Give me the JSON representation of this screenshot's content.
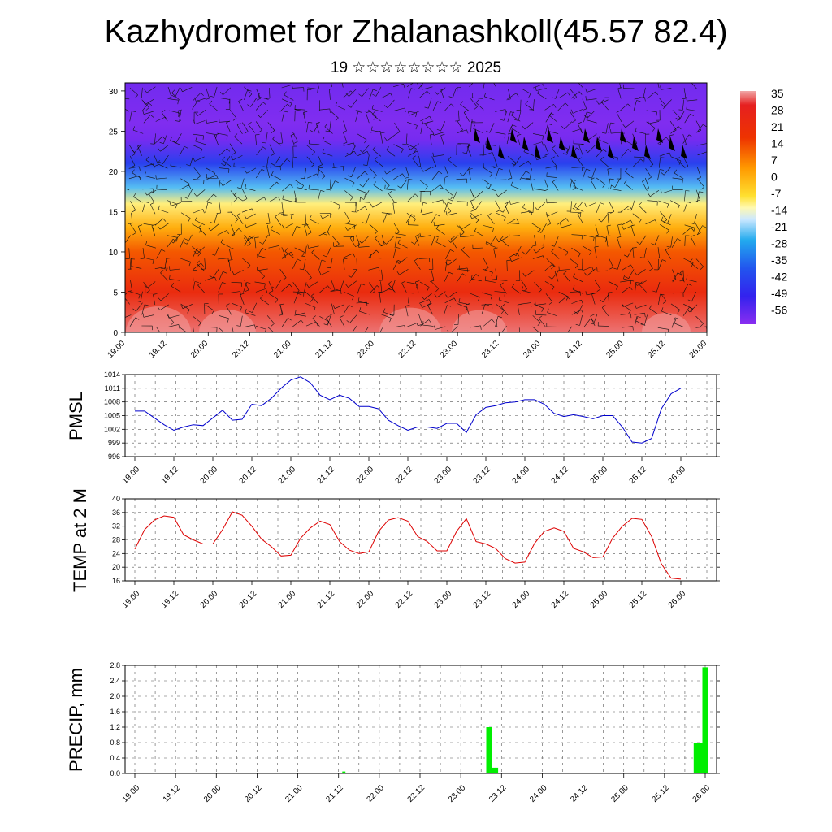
{
  "title": "Kazhydromet for Zhalanashkoll(45.57 82.4)",
  "subtitle": "19 ☆☆☆☆☆☆☆☆ 2025",
  "time_labels": [
    "19.00",
    "19.12",
    "20.00",
    "20.12",
    "21.00",
    "21.12",
    "22.00",
    "22.12",
    "23.00",
    "23.12",
    "24.00",
    "24.12",
    "25.00",
    "25.12",
    "26.00"
  ],
  "chart_data": [
    {
      "type": "heatmap",
      "title": "",
      "xlabel": "",
      "ylabel": "",
      "x_categories": [
        "19.00",
        "19.12",
        "20.00",
        "20.12",
        "21.00",
        "21.12",
        "22.00",
        "22.12",
        "23.00",
        "23.12",
        "24.00",
        "24.12",
        "25.00",
        "25.12",
        "26.00"
      ],
      "yticks": [
        0,
        5,
        10,
        15,
        20,
        25,
        30
      ],
      "ylim": [
        0,
        31
      ],
      "colorbar_labels": [
        "35",
        "28",
        "21",
        "14",
        "7",
        "0",
        "-7",
        "-14",
        "-21",
        "-28",
        "-35",
        "-42",
        "-49",
        "-56"
      ],
      "colorbar_range": [
        -60,
        38
      ],
      "temperature_profile": [
        {
          "height": 0,
          "value": 36
        },
        {
          "height": 5,
          "value": 28
        },
        {
          "height": 10,
          "value": 20
        },
        {
          "height": 13,
          "value": 10
        },
        {
          "height": 16,
          "value": 0
        },
        {
          "height": 18,
          "value": -14
        },
        {
          "height": 21,
          "value": -35
        },
        {
          "height": 24,
          "value": -56
        },
        {
          "height": 26,
          "value": -58
        },
        {
          "height": 31,
          "value": -55
        }
      ],
      "overlay": "wind barbs"
    },
    {
      "type": "line",
      "ylabel": "PMSL",
      "ylim": [
        996,
        1014
      ],
      "yticks": [
        996,
        999,
        1002,
        1005,
        1008,
        1011,
        1014
      ],
      "series": [
        {
          "color": "#0000cc",
          "values": [
            1006,
            1006,
            1004.5,
            1003,
            1001.8,
            1002.5,
            1003,
            1002.8,
            1004.5,
            1006.2,
            1004,
            1004.2,
            1007.5,
            1007.2,
            1008.8,
            1011,
            1012.8,
            1013.5,
            1012.2,
            1009.5,
            1008.5,
            1009.5,
            1008.8,
            1007,
            1007,
            1006.5,
            1004,
            1002.8,
            1001.8,
            1002.5,
            1002.5,
            1002.2,
            1003.3,
            1003.3,
            1001.3,
            1005.2,
            1006.8,
            1007.2,
            1007.8,
            1008,
            1008.5,
            1008.5,
            1007.5,
            1005.5,
            1004.8,
            1005.2,
            1004.8,
            1004.3,
            1005,
            1005,
            1002.5,
            999.2,
            999,
            1000,
            1006.5,
            1009.8,
            1011
          ]
        }
      ]
    },
    {
      "type": "line",
      "ylabel": "TEMP at 2 M",
      "ylim": [
        16,
        40
      ],
      "yticks": [
        16,
        20,
        24,
        28,
        32,
        36,
        40
      ],
      "series": [
        {
          "color": "#dd0000",
          "values": [
            25.3,
            31,
            33.8,
            35,
            34.6,
            29.5,
            28,
            26.8,
            26.8,
            31,
            36.2,
            35.2,
            32,
            28.2,
            26,
            23.3,
            23.5,
            28.5,
            31.5,
            33.5,
            32.5,
            27.5,
            25,
            24,
            24.5,
            30.5,
            33.8,
            34.5,
            33.5,
            29,
            27.5,
            24.8,
            24.8,
            30.5,
            34.2,
            27.5,
            26.8,
            25.5,
            22.5,
            21.2,
            21.5,
            27,
            30.5,
            31.5,
            30.5,
            25.5,
            24.5,
            22.8,
            23,
            28.5,
            32,
            34.3,
            34,
            29,
            21,
            16.8,
            16.5
          ]
        }
      ]
    },
    {
      "type": "bar",
      "ylabel": "PRECIP, mm",
      "ylim": [
        0,
        2.8
      ],
      "yticks": [
        "0.0",
        "0.4",
        "0.8",
        "1.2",
        "1.6",
        "2.0",
        "2.4",
        "2.8"
      ],
      "values": [
        0,
        0,
        0,
        0,
        0,
        0,
        0,
        0,
        0,
        0,
        0,
        0,
        0,
        0,
        0,
        0,
        0,
        0,
        0,
        0,
        0,
        0,
        0,
        0,
        0,
        0,
        0,
        0,
        0,
        0,
        0,
        0,
        0,
        0,
        0,
        0,
        0,
        0,
        0,
        0,
        0,
        0,
        0,
        0,
        0,
        0,
        0,
        0,
        0,
        0,
        0,
        0,
        0,
        0,
        0,
        0,
        0,
        0,
        0,
        0,
        0,
        0,
        0,
        0,
        0,
        0,
        0,
        0,
        0,
        0,
        0,
        0,
        0.05,
        0,
        0,
        0,
        0,
        0,
        0,
        0,
        0,
        0,
        0,
        0,
        0,
        0,
        0,
        0,
        0,
        0,
        0,
        0,
        0,
        0,
        0,
        0,
        0,
        0,
        0,
        0,
        0,
        0,
        0,
        0,
        0,
        0,
        0,
        0,
        0,
        0,
        0,
        0,
        0,
        0,
        0,
        0,
        0,
        0,
        0,
        0,
        0,
        0,
        1.2,
        1.2,
        0.15,
        0.15,
        0,
        0,
        0,
        0,
        0,
        0,
        0,
        0,
        0,
        0,
        0,
        0,
        0,
        0,
        0,
        0,
        0,
        0,
        0,
        0,
        0,
        0,
        0,
        0,
        0,
        0,
        0,
        0,
        0,
        0,
        0,
        0,
        0,
        0,
        0,
        0,
        0,
        0,
        0,
        0,
        0,
        0,
        0,
        0,
        0,
        0,
        0,
        0,
        0,
        0,
        0,
        0,
        0,
        0,
        0,
        0,
        0,
        0,
        0,
        0,
        0,
        0,
        0,
        0,
        0,
        0,
        0,
        0,
        0.8,
        0.8,
        0.8,
        2.75,
        2.75
      ]
    }
  ],
  "colors": {
    "pmsl_line": "#0000cc",
    "temp_line": "#dd0000",
    "precip_bar": "#00ee00"
  }
}
